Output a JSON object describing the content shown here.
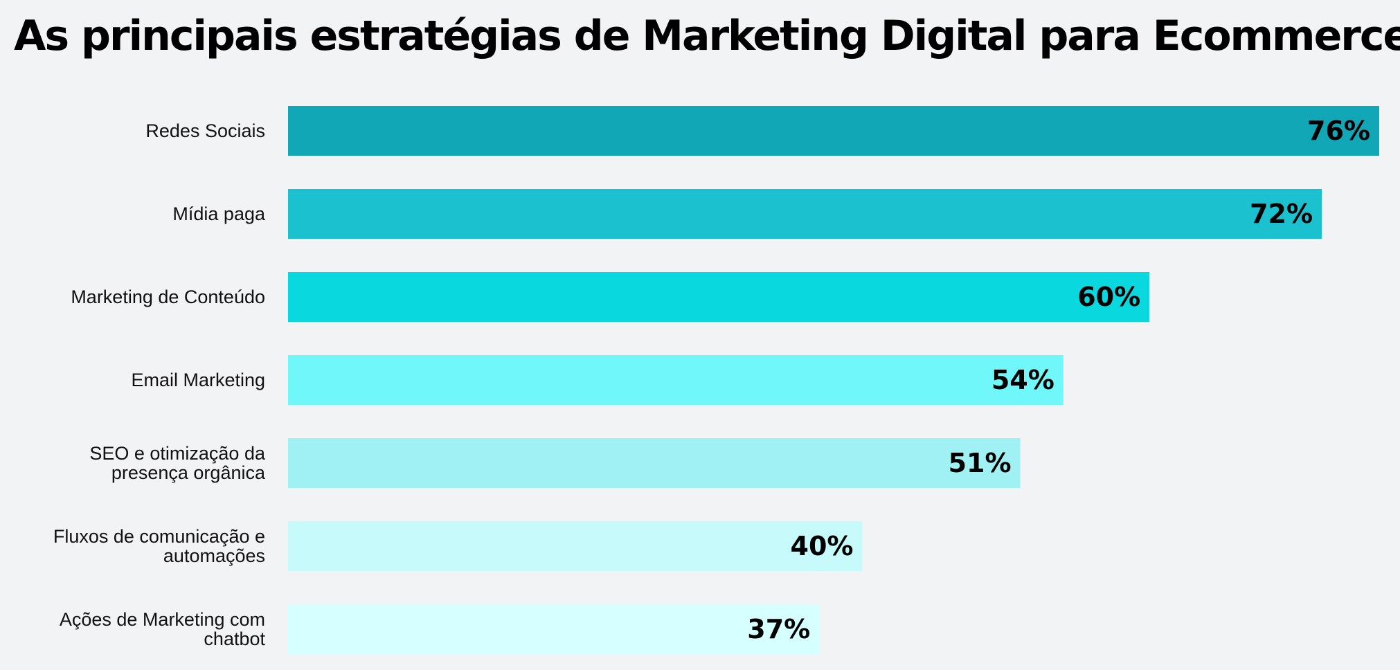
{
  "chart_data": {
    "type": "bar",
    "orientation": "horizontal",
    "title": "As principais estratégias de Marketing Digital para Ecommerce",
    "xlabel": "",
    "ylabel": "",
    "xlim": [
      0,
      76
    ],
    "grid": false,
    "legend": "none",
    "value_suffix": "%",
    "categories": [
      [
        "Redes Sociais"
      ],
      [
        "Mídia paga"
      ],
      [
        "Marketing de Conteúdo"
      ],
      [
        "Email Marketing"
      ],
      [
        "SEO e otimização da",
        "presença orgânica"
      ],
      [
        "Fluxos de comunicação e",
        "automações"
      ],
      [
        "Ações de Marketing com",
        "chatbot"
      ]
    ],
    "values": [
      76,
      72,
      60,
      54,
      51,
      40,
      37
    ],
    "value_labels": [
      "76%",
      "72%",
      "60%",
      "54%",
      "51%",
      "40%",
      "37%"
    ],
    "bar_colors": [
      "#12a7b7",
      "#1bc1ce",
      "#09d8de",
      "#70f7fa",
      "#a0f1f4",
      "#c6fafb",
      "#d6ffff"
    ]
  }
}
